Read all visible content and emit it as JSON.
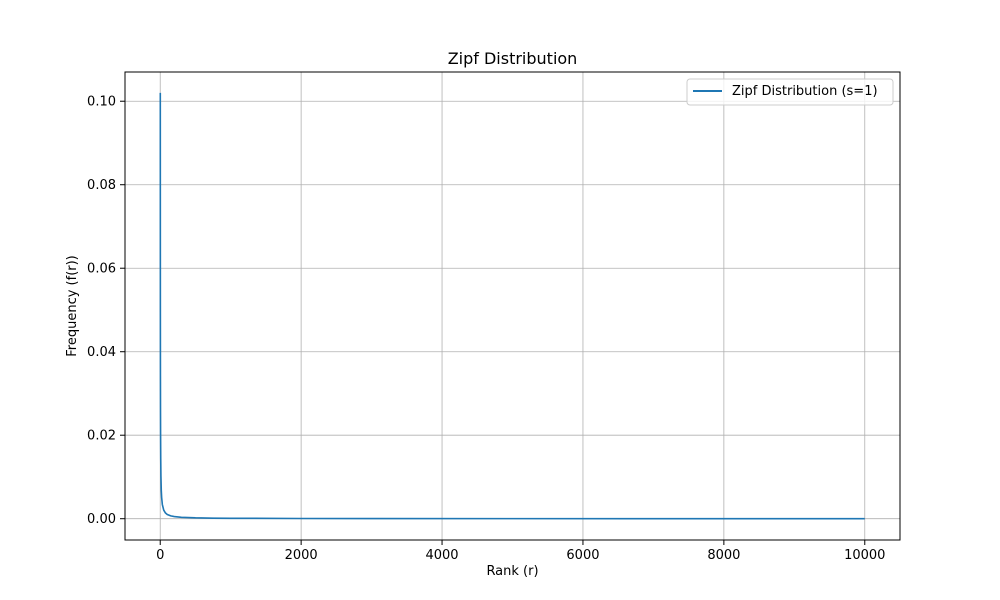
{
  "chart_data": {
    "type": "line",
    "title": "Zipf Distribution",
    "xlabel": "Rank (r)",
    "ylabel": "Frequency (f(r))",
    "xlim": [
      -500,
      10500
    ],
    "ylim": [
      -0.0051,
      0.107
    ],
    "x_ticks": [
      0,
      2000,
      4000,
      6000,
      8000,
      10000
    ],
    "x_tick_labels": [
      "0",
      "2000",
      "4000",
      "6000",
      "8000",
      "10000"
    ],
    "y_ticks": [
      0.0,
      0.02,
      0.04,
      0.06,
      0.08,
      0.1
    ],
    "y_tick_labels": [
      "0.00",
      "0.02",
      "0.04",
      "0.06",
      "0.08",
      "0.10"
    ],
    "grid": true,
    "legend_position": "top-right",
    "series": [
      {
        "name": "Zipf Distribution (s=1)",
        "color": "#1f77b4",
        "x": [
          1,
          2,
          3,
          4,
          5,
          7,
          10,
          15,
          20,
          30,
          50,
          75,
          100,
          150,
          200,
          300,
          500,
          750,
          1000,
          2000,
          3000,
          5000,
          7500,
          10000
        ],
        "y": [
          0.102,
          0.051,
          0.034,
          0.0255,
          0.0204,
          0.0146,
          0.0102,
          0.0068,
          0.0051,
          0.0034,
          0.00204,
          0.00136,
          0.00102,
          0.00068,
          0.00051,
          0.00034,
          0.000204,
          0.000136,
          0.000102,
          5.1e-05,
          3.4e-05,
          2.04e-05,
          1.36e-05,
          1.02e-05
        ]
      }
    ]
  }
}
